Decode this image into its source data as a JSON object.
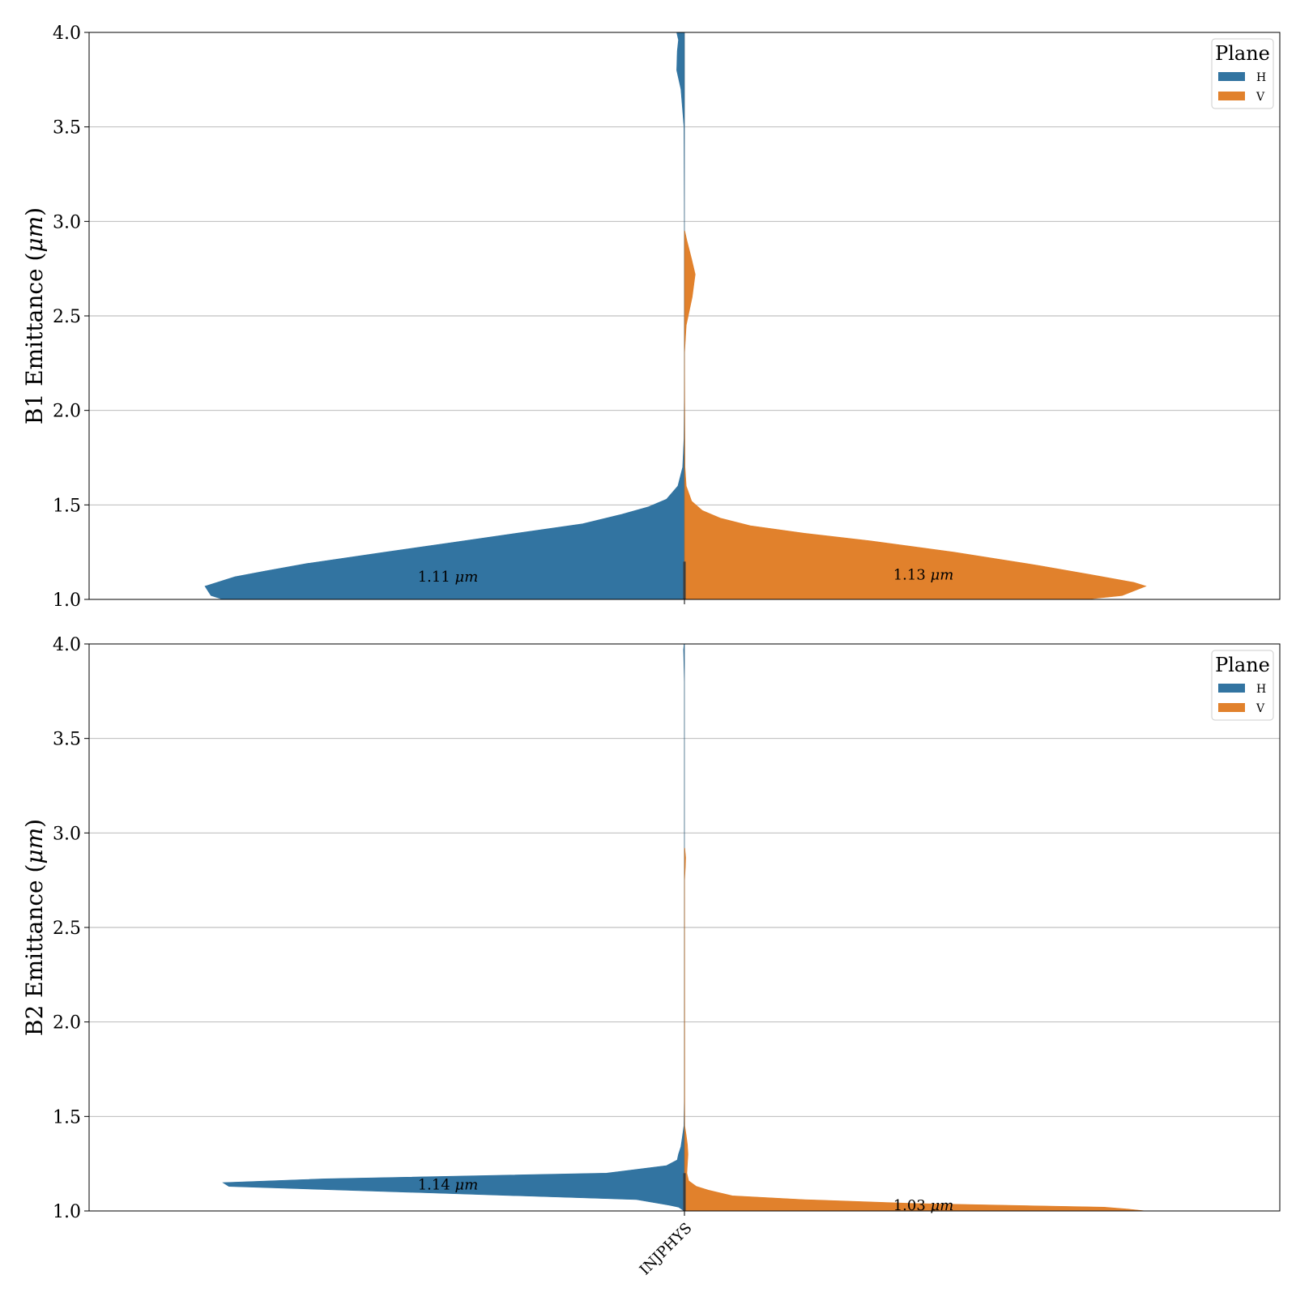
{
  "chart_data": [
    {
      "type": "violin",
      "ylabel_prefix": "B1 Emittance (",
      "ylabel_unit": "μm",
      "ylabel_suffix": ")",
      "ylim": [
        1.0,
        4.0
      ],
      "yticks": [
        1.0,
        1.5,
        2.0,
        2.5,
        3.0,
        3.5,
        4.0
      ],
      "ytick_labels": [
        "1.0",
        "1.5",
        "2.0",
        "2.5",
        "3.0",
        "3.5",
        "4.0"
      ],
      "grid": "horizontal",
      "categories": [
        "INJPHYS"
      ],
      "legend": {
        "title": "Plane",
        "position": "top-right",
        "entries": [
          "H",
          "V"
        ]
      },
      "series": [
        {
          "name": "H",
          "color": "#3274a1",
          "median_text": "1.11",
          "median_unit": "μm",
          "label_y": 1.12,
          "profile": [
            [
              1.0,
              0.77
            ],
            [
              1.02,
              0.79
            ],
            [
              1.07,
              0.8
            ],
            [
              1.12,
              0.75
            ],
            [
              1.15,
              0.7
            ],
            [
              1.19,
              0.63
            ],
            [
              1.25,
              0.5
            ],
            [
              1.3,
              0.39
            ],
            [
              1.35,
              0.28
            ],
            [
              1.4,
              0.17
            ],
            [
              1.45,
              0.105
            ],
            [
              1.49,
              0.06
            ],
            [
              1.53,
              0.03
            ],
            [
              1.6,
              0.011
            ],
            [
              1.7,
              0.003
            ],
            [
              1.85,
              0.0008
            ],
            [
              2.1,
              0.0001
            ],
            [
              3.0,
              0.0001
            ],
            [
              3.5,
              0.0008
            ],
            [
              3.7,
              0.006
            ],
            [
              3.8,
              0.013
            ],
            [
              3.9,
              0.012
            ],
            [
              3.96,
              0.01
            ],
            [
              4.0,
              0.013
            ]
          ]
        },
        {
          "name": "V",
          "color": "#e1812c",
          "median_text": "1.13",
          "median_unit": "μm",
          "label_y": 1.13,
          "profile": [
            [
              1.0,
              0.67
            ],
            [
              1.02,
              0.73
            ],
            [
              1.07,
              0.77
            ],
            [
              1.09,
              0.75
            ],
            [
              1.13,
              0.68
            ],
            [
              1.18,
              0.59
            ],
            [
              1.25,
              0.45
            ],
            [
              1.31,
              0.31
            ],
            [
              1.35,
              0.2
            ],
            [
              1.39,
              0.11
            ],
            [
              1.43,
              0.06
            ],
            [
              1.47,
              0.03
            ],
            [
              1.52,
              0.012
            ],
            [
              1.6,
              0.003
            ],
            [
              1.7,
              0.001
            ],
            [
              2.3,
              0.0002
            ],
            [
              2.45,
              0.003
            ],
            [
              2.6,
              0.013
            ],
            [
              2.72,
              0.018
            ],
            [
              2.8,
              0.012
            ],
            [
              2.9,
              0.004
            ],
            [
              2.95,
              0.0005
            ]
          ]
        }
      ]
    },
    {
      "type": "violin",
      "ylabel_prefix": "B2 Emittance (",
      "ylabel_unit": "μm",
      "ylabel_suffix": ")",
      "ylim": [
        1.0,
        4.0
      ],
      "yticks": [
        1.0,
        1.5,
        2.0,
        2.5,
        3.0,
        3.5,
        4.0
      ],
      "ytick_labels": [
        "1.0",
        "1.5",
        "2.0",
        "2.5",
        "3.0",
        "3.5",
        "4.0"
      ],
      "grid": "horizontal",
      "categories": [
        "INJPHYS"
      ],
      "xtick_labels": [
        "INJPHYS"
      ],
      "legend": {
        "title": "Plane",
        "position": "top-right",
        "entries": [
          "H",
          "V"
        ]
      },
      "series": [
        {
          "name": "H",
          "color": "#3274a1",
          "median_text": "1.14",
          "median_unit": "μm",
          "label_y": 1.14,
          "profile": [
            [
              1.0,
              0.0005
            ],
            [
              1.02,
              0.01
            ],
            [
              1.03,
              0.025
            ],
            [
              1.06,
              0.08
            ],
            [
              1.13,
              0.76
            ],
            [
              1.15,
              0.77
            ],
            [
              1.17,
              0.6
            ],
            [
              1.2,
              0.13
            ],
            [
              1.24,
              0.03
            ],
            [
              1.27,
              0.012
            ],
            [
              1.3,
              0.01
            ],
            [
              1.34,
              0.006
            ],
            [
              1.38,
              0.004
            ],
            [
              1.45,
              0.001
            ],
            [
              1.6,
              0.0002
            ],
            [
              3.8,
              0.0002
            ],
            [
              3.9,
              0.001
            ],
            [
              3.97,
              0.0015
            ],
            [
              4.0,
              0.0005
            ]
          ]
        },
        {
          "name": "V",
          "color": "#e1812c",
          "median_text": "1.03",
          "median_unit": "μm",
          "label_y": 1.03,
          "profile": [
            [
              1.0,
              0.77
            ],
            [
              1.01,
              0.74
            ],
            [
              1.02,
              0.7
            ],
            [
              1.04,
              0.38
            ],
            [
              1.06,
              0.2
            ],
            [
              1.08,
              0.08
            ],
            [
              1.11,
              0.04
            ],
            [
              1.13,
              0.02
            ],
            [
              1.16,
              0.007
            ],
            [
              1.2,
              0.004
            ],
            [
              1.25,
              0.005
            ],
            [
              1.3,
              0.006
            ],
            [
              1.35,
              0.005
            ],
            [
              1.4,
              0.003
            ],
            [
              1.45,
              0.0005
            ],
            [
              2.75,
              0.0003
            ],
            [
              2.82,
              0.0015
            ],
            [
              2.87,
              0.002
            ],
            [
              2.92,
              0.0005
            ]
          ]
        }
      ]
    }
  ]
}
